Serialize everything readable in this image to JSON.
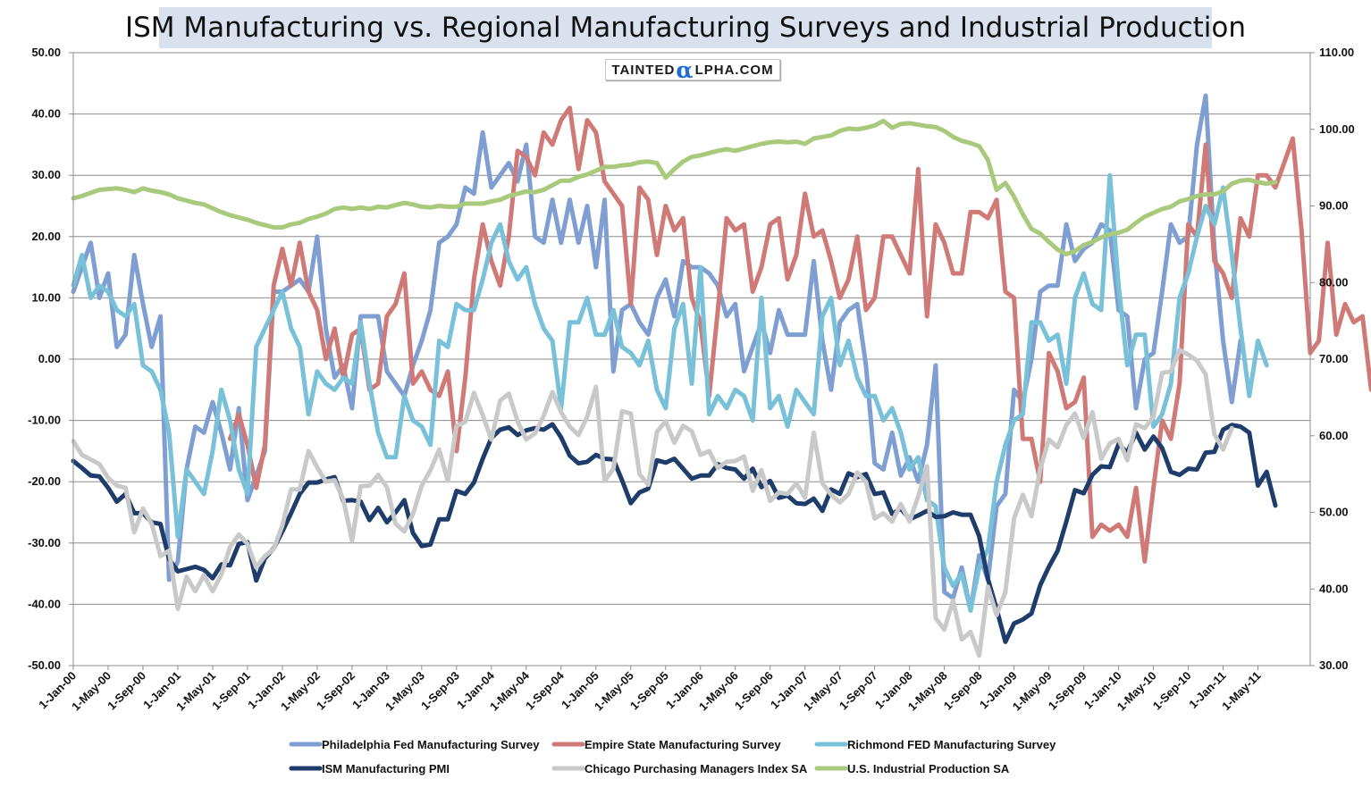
{
  "chart_data": {
    "type": "line",
    "title": "ISM Manufacturing vs. Regional Manufacturing Surveys and Industrial Production",
    "watermark": {
      "prefix": "TAINTED",
      "alpha": "α",
      "suffix": "LPHA.COM"
    },
    "x_start": "2000-01",
    "x_tick_labels": [
      "1-Jan-00",
      "1-May-00",
      "1-Sep-00",
      "1-Jan-01",
      "1-May-01",
      "1-Sep-01",
      "1-Jan-02",
      "1-May-02",
      "1-Sep-02",
      "1-Jan-03",
      "1-May-03",
      "1-Sep-03",
      "1-Jan-04",
      "1-May-04",
      "1-Sep-04",
      "1-Jan-05",
      "1-May-05",
      "1-Sep-05",
      "1-Jan-06",
      "1-May-06",
      "1-Sep-06",
      "1-Jan-07",
      "1-May-07",
      "1-Sep-07",
      "1-Jan-08",
      "1-May-08",
      "1-Sep-08",
      "1-Jan-09",
      "1-May-09",
      "1-Sep-09",
      "1-Jan-10",
      "1-May-10",
      "1-Sep-10",
      "1-Jan-11",
      "1-May-11"
    ],
    "y_left": {
      "min": -50,
      "max": 50,
      "step": 10,
      "tick_labels": [
        "-50.00",
        "-40.00",
        "-30.00",
        "-20.00",
        "-10.00",
        "0.00",
        "10.00",
        "20.00",
        "30.00",
        "40.00",
        "50.00"
      ]
    },
    "y_right": {
      "min": 30,
      "max": 110,
      "step": 10,
      "tick_labels": [
        "30.00",
        "40.00",
        "50.00",
        "60.00",
        "70.00",
        "80.00",
        "90.00",
        "100.00",
        "110.00"
      ]
    },
    "grid": true,
    "legend_position": "bottom",
    "series": [
      {
        "name": "Philadelphia Fed Manufacturing Survey",
        "axis": "left",
        "color": "#7f9fd3",
        "start": "2000-01",
        "values": [
          11,
          15,
          19,
          10,
          14,
          2,
          4,
          17,
          9,
          2,
          7,
          -36,
          -33,
          -18,
          -11,
          -12,
          -7,
          -12,
          -18,
          -8,
          -23,
          -19,
          -15,
          11,
          11,
          12,
          13,
          11,
          20,
          5,
          -3,
          -1,
          -8,
          7,
          7,
          7,
          -2,
          -4,
          -6,
          -1,
          3,
          8,
          19,
          20,
          22,
          28,
          27,
          37,
          28,
          30,
          32,
          29,
          35,
          20,
          19,
          26,
          19,
          26,
          19,
          25,
          15,
          26,
          -2,
          8,
          9,
          6,
          4,
          10,
          13,
          7,
          16,
          15,
          15,
          14,
          12,
          7,
          9,
          -2,
          2,
          6,
          1,
          8,
          4,
          4,
          4,
          16,
          3,
          -5,
          6,
          8,
          9,
          -1,
          -17,
          -18,
          -12,
          -19,
          -16,
          -20,
          -14,
          -1,
          -38,
          -39,
          -34,
          -41,
          -32,
          -36,
          -24,
          -22,
          -5,
          -7,
          0,
          11,
          12,
          12,
          22,
          16,
          18,
          19,
          22,
          21,
          8,
          7,
          -8,
          0,
          1,
          11,
          22,
          19,
          20,
          35,
          43,
          18,
          3,
          -7,
          3
        ]
      },
      {
        "name": "Empire State Manufacturing Survey",
        "axis": "left",
        "color": "#d07a78",
        "start": "2001-07",
        "values": [
          -13,
          -9,
          -14,
          -21,
          -14,
          12,
          18,
          12,
          19,
          11,
          8,
          0,
          5,
          -3,
          4,
          5,
          -5,
          -4,
          7,
          9,
          14,
          -4,
          -2,
          -5,
          -6,
          -2,
          -15,
          -3,
          13,
          22,
          16,
          12,
          20,
          34,
          33,
          30,
          37,
          35,
          39,
          41,
          31,
          39,
          37,
          29,
          27,
          25,
          9,
          28,
          26,
          17,
          25,
          21,
          23,
          10,
          6,
          -6,
          8,
          23,
          21,
          22,
          11,
          15,
          22,
          23,
          13,
          17,
          27,
          20,
          21,
          16,
          10,
          13,
          20,
          8,
          10,
          20,
          20,
          17,
          14,
          31,
          7,
          22,
          19,
          14,
          14,
          24,
          24,
          23,
          26,
          11,
          10,
          -13,
          -13,
          -20,
          1,
          -2,
          -8,
          -7,
          -3,
          -29,
          -27,
          -28,
          -27,
          -29,
          -21,
          -33,
          -21,
          -10,
          -13,
          -4,
          22,
          20,
          35,
          16,
          14,
          10,
          23,
          20,
          30,
          30,
          28,
          32,
          36,
          21,
          1,
          3,
          19,
          4,
          9,
          6,
          7,
          -5,
          0,
          -11,
          11,
          15,
          18,
          22,
          19,
          12,
          -12,
          -8,
          -4
        ]
      },
      {
        "name": "Richmond FED Manufacturing Survey",
        "axis": "left",
        "color": "#79c1d8",
        "start": "2000-01",
        "values": [
          12,
          17,
          10,
          12,
          11,
          8,
          7,
          9,
          -1,
          -2,
          -5,
          -12,
          -29,
          -18,
          -20,
          -22,
          -15,
          -5,
          -10,
          -18,
          -22,
          2,
          5,
          8,
          11,
          5,
          2,
          -9,
          -2,
          -4,
          -5,
          -3,
          -4,
          6,
          -4,
          -12,
          -16,
          -16,
          -6,
          -10,
          -11,
          -14,
          3,
          2,
          9,
          8,
          8,
          13,
          19,
          22,
          16,
          13,
          15,
          9,
          5,
          3,
          -8,
          6,
          6,
          10,
          4,
          4,
          8,
          2,
          1,
          -1,
          3,
          -5,
          -8,
          5,
          9,
          -4,
          15,
          -9,
          -6,
          -8,
          -5,
          -6,
          -10,
          10,
          -8,
          -6,
          -11,
          -5,
          -7,
          -9,
          7,
          10,
          -1,
          3,
          -3,
          -6,
          -6,
          -10,
          -8,
          -12,
          -18,
          -16,
          -23,
          -24,
          -34,
          -37,
          -35,
          -41,
          -34,
          -31,
          -20,
          -14,
          -10,
          -9,
          6,
          6,
          3,
          4,
          -4,
          10,
          14,
          9,
          8,
          30,
          12,
          -1,
          4,
          4,
          -11,
          -9,
          -4,
          10,
          14,
          20,
          25,
          22,
          28,
          17,
          5,
          -6,
          3,
          -1
        ]
      },
      {
        "name": "ISM Manufacturing PMI",
        "axis": "right",
        "color": "#1f3d6b",
        "start": "2000-01",
        "values": [
          56.7,
          55.8,
          54.8,
          54.7,
          53.2,
          51.4,
          52.4,
          49.9,
          49.9,
          48.7,
          48.5,
          43.9,
          42.3,
          42.6,
          42.9,
          42.5,
          41.4,
          43.2,
          43.1,
          45.9,
          46.1,
          41.1,
          44.0,
          45.3,
          47.5,
          49.9,
          52.4,
          53.9,
          53.9,
          54.3,
          54.6,
          51.5,
          51.6,
          51.4,
          49.0,
          50.6,
          48.7,
          50.0,
          51.6,
          47.3,
          45.6,
          45.8,
          49.1,
          49.1,
          52.8,
          52.4,
          53.9,
          57.0,
          59.7,
          60.8,
          61.1,
          60.1,
          60.7,
          61.0,
          60.8,
          61.5,
          59.8,
          57.4,
          56.4,
          56.6,
          57.5,
          57.0,
          56.9,
          54.2,
          51.2,
          52.6,
          53.1,
          56.8,
          56.5,
          57.0,
          55.7,
          54.4,
          54.8,
          54.8,
          56.3,
          55.8,
          55.6,
          54.4,
          55.7,
          53.3,
          54.1,
          51.9,
          52.2,
          51.2,
          51.1,
          51.8,
          50.2,
          53.0,
          52.4,
          55.1,
          54.6,
          55.0,
          52.4,
          52.6,
          49.8,
          50.5,
          49.1,
          49.6,
          50.2,
          49.4,
          49.5,
          50.0,
          49.7,
          49.7,
          46.9,
          41.3,
          37.4,
          33.1,
          35.5,
          36.0,
          36.8,
          40.5,
          42.9,
          45.0,
          48.8,
          52.9,
          52.5,
          54.9,
          56.0,
          55.9,
          58.9,
          57.8,
          60.4,
          58.2,
          59.9,
          58.4,
          55.3,
          54.9,
          55.7,
          55.6,
          57.8,
          57.9,
          60.8,
          61.4,
          61.2,
          60.4,
          53.5,
          55.3,
          50.9
        ]
      },
      {
        "name": "Chicago Purchasing Managers Index SA",
        "axis": "right",
        "color": "#c9c9c9",
        "start": "2000-01",
        "values": [
          59.3,
          57.5,
          56.9,
          56.3,
          54.5,
          53.5,
          53.2,
          47.4,
          50.5,
          48.5,
          44.3,
          45.0,
          37.4,
          41.6,
          39.7,
          41.8,
          39.7,
          41.9,
          45.5,
          47.1,
          45.9,
          42.8,
          44.3,
          45.2,
          48.3,
          53.0,
          53.0,
          58.0,
          55.9,
          54.0,
          54.2,
          51.7,
          46.3,
          53.4,
          53.5,
          54.9,
          53.3,
          48.5,
          47.5,
          49.8,
          53.5,
          55.5,
          58.2,
          54.1,
          61.3,
          61.8,
          65.6,
          62.7,
          59.5,
          64.6,
          65.5,
          61.9,
          59.5,
          60.3,
          62.6,
          65.7,
          63.1,
          61.2,
          60.1,
          62.5,
          66.4,
          54.1,
          55.7,
          63.2,
          62.9,
          55.0,
          53.6,
          60.5,
          61.9,
          59.1,
          61.3,
          60.6,
          57.5,
          58.0,
          55.8,
          56.6,
          56.7,
          57.3,
          52.8,
          55.5,
          51.5,
          52.6,
          52.4,
          53.8,
          51.9,
          60.4,
          53.8,
          52.3,
          51.3,
          52.4,
          55.2,
          54.0,
          49.2,
          49.9,
          48.8,
          51.1,
          48.8,
          52.1,
          56.0,
          36.2,
          34.7,
          38.5,
          33.4,
          34.4,
          31.3,
          40.3,
          36.6,
          39.6,
          49.2,
          52.3,
          49.5,
          55.7,
          59.5,
          58.5,
          61.4,
          62.9,
          59.7,
          63.1,
          57.0,
          59.0,
          59.6,
          56.8,
          61.5,
          61.0,
          62.5,
          68.2,
          68.4,
          71.2,
          70.6,
          69.8,
          68.0,
          60.2,
          58.2,
          61.0
        ]
      },
      {
        "name": "U.S. Industrial Production SA",
        "axis": "right",
        "color": "#a9c97c",
        "start": "2000-01",
        "values": [
          91.0,
          91.3,
          91.7,
          92.1,
          92.2,
          92.3,
          92.1,
          91.8,
          92.3,
          92.0,
          91.8,
          91.5,
          91.0,
          90.7,
          90.4,
          90.2,
          89.7,
          89.2,
          88.8,
          88.5,
          88.2,
          87.8,
          87.5,
          87.2,
          87.2,
          87.6,
          87.8,
          88.3,
          88.6,
          89.0,
          89.6,
          89.8,
          89.6,
          89.8,
          89.6,
          89.9,
          89.8,
          90.1,
          90.4,
          90.2,
          89.9,
          89.8,
          90.0,
          89.9,
          89.9,
          90.3,
          90.3,
          90.3,
          90.6,
          90.8,
          91.3,
          91.6,
          91.9,
          91.8,
          92.1,
          92.7,
          93.3,
          93.3,
          93.8,
          94.1,
          94.6,
          95.1,
          95.1,
          95.3,
          95.4,
          95.7,
          95.8,
          95.6,
          93.7,
          94.8,
          95.8,
          96.4,
          96.6,
          96.9,
          97.2,
          97.4,
          97.2,
          97.5,
          97.8,
          98.1,
          98.3,
          98.4,
          98.3,
          98.4,
          98.1,
          98.8,
          99.0,
          99.2,
          99.8,
          100.1,
          100.0,
          100.2,
          100.5,
          101.1,
          100.2,
          100.7,
          100.8,
          100.6,
          100.4,
          100.3,
          99.8,
          99.0,
          98.5,
          98.2,
          97.8,
          96.0,
          92.1,
          93.0,
          91.2,
          88.9,
          87.0,
          86.4,
          85.3,
          84.3,
          83.7,
          84.1,
          84.9,
          85.3,
          85.9,
          86.3,
          86.5,
          86.9,
          87.8,
          88.6,
          89.1,
          89.6,
          89.9,
          90.6,
          90.9,
          91.3,
          91.5,
          91.5,
          91.9,
          92.9,
          93.3,
          93.4,
          93.1,
          92.9,
          93.1
        ]
      }
    ]
  }
}
